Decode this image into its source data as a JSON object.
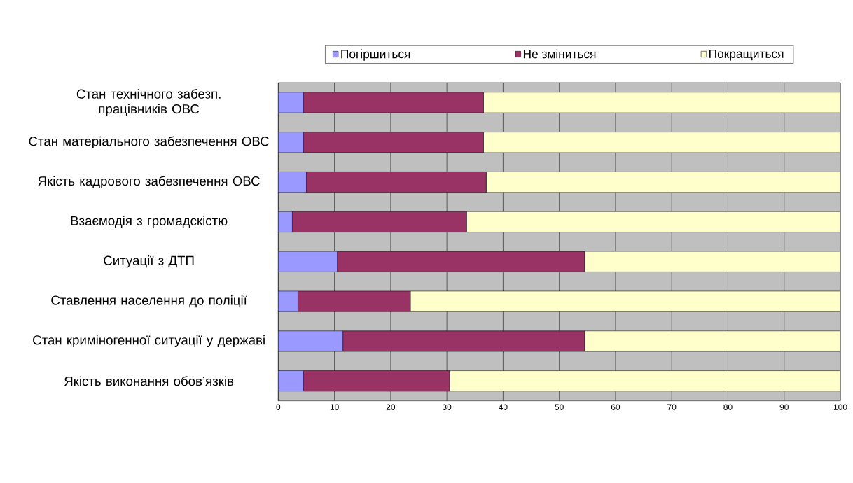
{
  "chart_data": {
    "type": "bar",
    "orientation": "horizontal",
    "stacked": true,
    "categories": [
      "Стан технічного забезп. працівників ОВС",
      "Стан матеріального забезпечення ОВС",
      "Якість кадрового забезпечення ОВС",
      "Взаємодія з громадскістю",
      "Ситуації з ДТП",
      "Ставлення населення до поліції",
      "Стан криміногенної ситуації у державі",
      "Якість виконання обов’язків"
    ],
    "series": [
      {
        "name": "Погіршиться",
        "color": "#9999ff",
        "values": [
          4.5,
          4.5,
          5,
          2.5,
          10.5,
          3.5,
          11.5,
          4.5
        ]
      },
      {
        "name": "Не зміниться",
        "color": "#993366",
        "values": [
          32,
          32,
          32,
          31,
          44,
          20,
          43,
          26
        ]
      },
      {
        "name": "Покращиться",
        "color": "#ffffcc",
        "values": [
          63.5,
          63.5,
          63,
          66.5,
          45.5,
          76.5,
          45.5,
          69.5
        ]
      }
    ],
    "xlim": [
      0,
      100
    ],
    "xticks": [
      0,
      10,
      20,
      30,
      40,
      50,
      60,
      70,
      80,
      90,
      100
    ],
    "grid": "x",
    "legend": "top"
  }
}
